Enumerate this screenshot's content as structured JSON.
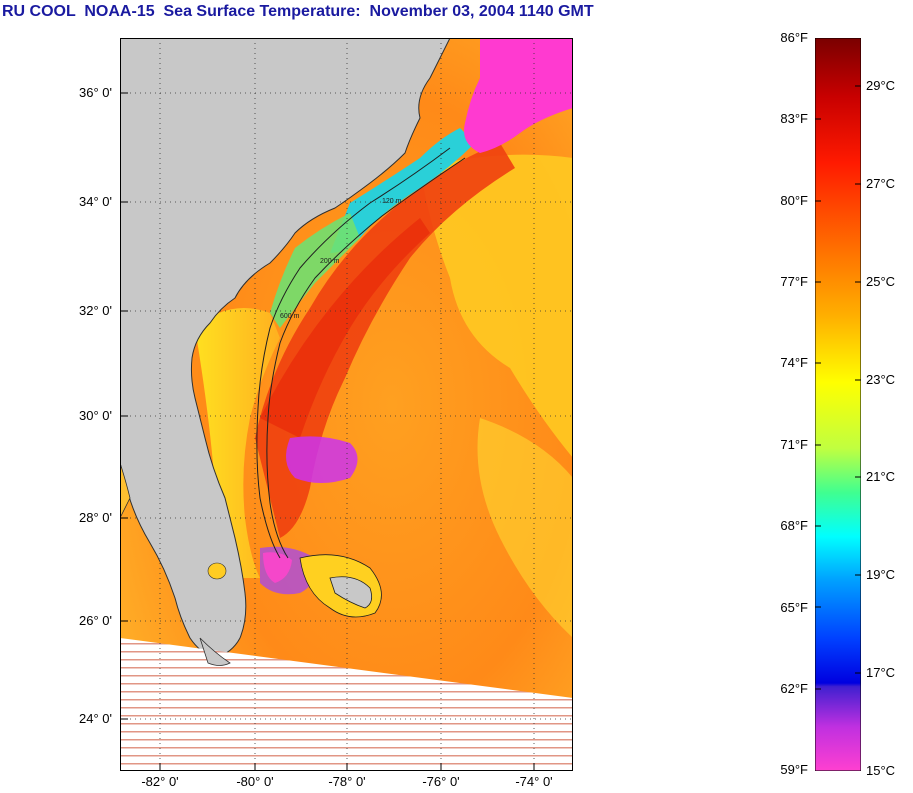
{
  "title": "RU COOL  NOAA-15  Sea Surface Temperature:  November 03, 2004 1140 GMT",
  "lat_labels": [
    "36° 0'",
    "34° 0'",
    "32° 0'",
    "30° 0'",
    "28° 0'",
    "26° 0'",
    "24° 0'"
  ],
  "lon_labels": [
    "-82° 0'",
    "-80° 0'",
    "-78° 0'",
    "-76° 0'",
    "-74° 0'"
  ],
  "contour_labels": [
    "120 m",
    "200 m",
    "600 m"
  ],
  "colorbar": {
    "fahrenheit_labels": [
      "86°F",
      "83°F",
      "80°F",
      "77°F",
      "74°F",
      "71°F",
      "68°F",
      "65°F",
      "62°F",
      "59°F"
    ],
    "celsius_labels": [
      "29°C",
      "27°C",
      "25°C",
      "23°C",
      "21°C",
      "19°C",
      "17°C",
      "15°C"
    ],
    "range_f": [
      59,
      86
    ]
  },
  "colors": {
    "title": "#1a1aa0",
    "land": "#c8c8c8",
    "ocean_warm": "#ff7a10",
    "gulf_stream": "#f03a10",
    "cold_shelf": "#22ccdd",
    "cloud": "#ff33cc"
  }
}
